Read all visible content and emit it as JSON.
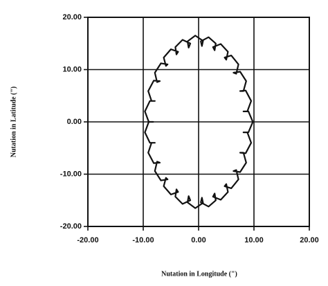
{
  "chart_data": {
    "type": "line",
    "xlabel": "Nutation in Longitude (\")",
    "ylabel": "Nutation in Latitude (\")",
    "color": "#111111",
    "grid": true,
    "xlim": [
      -20,
      20
    ],
    "ylim": [
      -20,
      20
    ],
    "xticks": [
      {
        "value": -20,
        "label": "-20.00"
      },
      {
        "value": -10,
        "label": "-10.00"
      },
      {
        "value": 0,
        "label": "0.00"
      },
      {
        "value": 10,
        "label": "10.00"
      },
      {
        "value": 20,
        "label": "20.00"
      }
    ],
    "yticks": [
      {
        "value": -20,
        "label": "-20.00"
      },
      {
        "value": -10,
        "label": "-10.00"
      },
      {
        "value": 0,
        "label": "0.00"
      },
      {
        "value": 10,
        "label": "10.00"
      },
      {
        "value": 20,
        "label": "20.00"
      }
    ],
    "x": [
      9.8,
      9.0,
      8.1,
      8.8,
      9.5,
      8.5,
      7.5,
      8.1,
      8.6,
      7.5,
      6.3,
      6.8,
      7.2,
      5.9,
      4.7,
      5.0,
      5.3,
      4.0,
      2.6,
      2.9,
      3.1,
      1.8,
      0.4,
      0.6,
      0.8,
      -0.6,
      -2.0,
      -1.8,
      -1.5,
      -2.9,
      -4.2,
      -4.0,
      -3.7,
      -5.0,
      -6.3,
      -5.9,
      -5.6,
      -6.8,
      -7.9,
      -7.5,
      -7.0,
      -8.1,
      -9.1,
      -8.5,
      -7.9,
      -8.8,
      -9.7,
      -9.0,
      -8.2,
      -9.0,
      -9.7,
      -8.8,
      -7.9,
      -8.5,
      -9.1,
      -8.1,
      -7.0,
      -7.5,
      -7.9,
      -6.8,
      -5.6,
      -5.9,
      -6.3,
      -5.0,
      -3.7,
      -4.0,
      -4.2,
      -2.9,
      -1.5,
      -1.8,
      -2.0,
      -0.6,
      0.8,
      0.6,
      0.4,
      1.8,
      3.1,
      2.9,
      2.6,
      4.0,
      5.3,
      5.0,
      4.7,
      5.9,
      7.2,
      6.8,
      6.3,
      7.5,
      8.6,
      8.1,
      7.5,
      8.5,
      9.5,
      8.8,
      8.1,
      9.0,
      9.8
    ],
    "values": [
      0.0,
      2.0,
      2.0,
      2.0,
      4.0,
      6.0,
      5.9,
      5.9,
      7.8,
      9.6,
      9.4,
      9.2,
      11.0,
      12.7,
      12.3,
      11.9,
      13.4,
      14.9,
      14.3,
      13.7,
      15.0,
      16.2,
      15.4,
      14.5,
      15.5,
      16.5,
      15.4,
      14.2,
      15.0,
      15.7,
      14.3,
      12.9,
      13.4,
      13.9,
      12.3,
      10.7,
      11.0,
      11.2,
      9.4,
      7.6,
      7.8,
      7.9,
      5.9,
      4.0,
      4.0,
      4.0,
      2.0,
      0.0,
      0.0,
      0.0,
      -2.0,
      -4.0,
      -4.0,
      -4.0,
      -5.9,
      -7.9,
      -7.8,
      -7.6,
      -9.4,
      -11.2,
      -11.0,
      -10.7,
      -12.3,
      -13.9,
      -13.4,
      -12.9,
      -14.3,
      -15.7,
      -15.0,
      -14.2,
      -15.4,
      -16.5,
      -15.5,
      -14.5,
      -15.4,
      -16.2,
      -15.0,
      -13.7,
      -14.3,
      -14.9,
      -13.4,
      -11.9,
      -12.3,
      -12.7,
      -11.0,
      -9.2,
      -9.4,
      -9.6,
      -7.8,
      -5.9,
      -5.9,
      -6.0,
      -4.0,
      -2.0,
      -2.0,
      -2.0,
      0.0
    ]
  }
}
